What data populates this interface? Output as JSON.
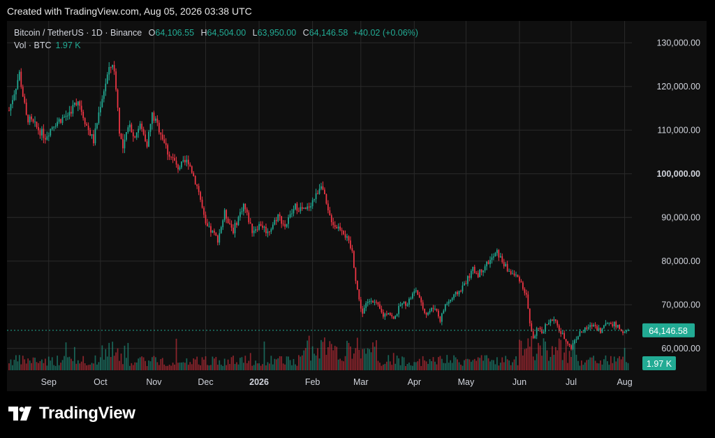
{
  "header": {
    "created_with": "Created with TradingView.com, Aug 05, 2026 03:38 UTC"
  },
  "legend": {
    "symbol": "Bitcoin / TetherUS · 1D · Binance",
    "open_label": "O",
    "open": "64,106.55",
    "high_label": "H",
    "high": "64,504.00",
    "low_label": "L",
    "low": "63,950.00",
    "close_label": "C",
    "close": "64,146.58",
    "change": "+40.02 (+0.06%)",
    "vol_label": "Vol · BTC",
    "vol": "1.97 K"
  },
  "brand": {
    "name": "TradingView"
  },
  "colors": {
    "up": "#22ab94",
    "down": "#f23645",
    "background": "#0f0f0f",
    "grid": "#2a2a2a",
    "text": "#d1d4dc"
  },
  "chart_data": {
    "type": "candlestick",
    "y_axis": {
      "ticks": [
        "130,000.00",
        "120,000.00",
        "110,000.00",
        "100,000.00",
        "90,000.00",
        "80,000.00",
        "70,000.00",
        "60,000.00"
      ],
      "tick_values": [
        130000,
        120000,
        110000,
        100000,
        90000,
        80000,
        70000,
        60000
      ],
      "bold_tick": "100,000.00",
      "range": [
        55000,
        135000
      ]
    },
    "x_axis": {
      "labels": [
        "Sep",
        "Oct",
        "Nov",
        "Dec",
        "2026",
        "Feb",
        "Mar",
        "Apr",
        "May",
        "Jun",
        "Jul",
        "Aug"
      ],
      "label_days": [
        23,
        53,
        84,
        114,
        145,
        176,
        204,
        235,
        265,
        296,
        326,
        357
      ],
      "bold_label": "2026",
      "start_date": "2025-08-09",
      "end_date": "2026-08-05"
    },
    "price_keypoints": [
      [
        0,
        114500
      ],
      [
        6,
        123000
      ],
      [
        10,
        113000
      ],
      [
        15,
        111000
      ],
      [
        21,
        108500
      ],
      [
        26,
        111500
      ],
      [
        34,
        113500
      ],
      [
        40,
        117000
      ],
      [
        45,
        111000
      ],
      [
        49,
        107500
      ],
      [
        53,
        116000
      ],
      [
        57,
        122500
      ],
      [
        60,
        125500
      ],
      [
        62,
        120000
      ],
      [
        64,
        110000
      ],
      [
        66,
        105500
      ],
      [
        70,
        112000
      ],
      [
        72,
        108500
      ],
      [
        76,
        111000
      ],
      [
        80,
        107000
      ],
      [
        83,
        113500
      ],
      [
        88,
        109500
      ],
      [
        92,
        105000
      ],
      [
        98,
        101500
      ],
      [
        104,
        103000
      ],
      [
        110,
        96000
      ],
      [
        114,
        88000
      ],
      [
        118,
        86500
      ],
      [
        121,
        85000
      ],
      [
        125,
        91000
      ],
      [
        130,
        87000
      ],
      [
        136,
        93000
      ],
      [
        141,
        87000
      ],
      [
        146,
        88500
      ],
      [
        150,
        86500
      ],
      [
        156,
        90500
      ],
      [
        160,
        88000
      ],
      [
        166,
        92500
      ],
      [
        172,
        91500
      ],
      [
        178,
        95000
      ],
      [
        181,
        98000
      ],
      [
        185,
        91000
      ],
      [
        189,
        88000
      ],
      [
        193,
        87500
      ],
      [
        196,
        85000
      ],
      [
        199,
        82000
      ],
      [
        201,
        76000
      ],
      [
        203,
        71000
      ],
      [
        205,
        68000
      ],
      [
        207,
        70000
      ],
      [
        210,
        71500
      ],
      [
        214,
        69500
      ],
      [
        217,
        67500
      ],
      [
        220,
        68500
      ],
      [
        223,
        66500
      ],
      [
        227,
        70000
      ],
      [
        231,
        70500
      ],
      [
        236,
        73500
      ],
      [
        239,
        70000
      ],
      [
        242,
        68000
      ],
      [
        247,
        69500
      ],
      [
        250,
        66500
      ],
      [
        253,
        70000
      ],
      [
        257,
        71500
      ],
      [
        262,
        73500
      ],
      [
        266,
        76000
      ],
      [
        269,
        78000
      ],
      [
        272,
        77000
      ],
      [
        276,
        79000
      ],
      [
        280,
        80500
      ],
      [
        283,
        82000
      ],
      [
        286,
        80000
      ],
      [
        289,
        78000
      ],
      [
        292,
        77000
      ],
      [
        296,
        76000
      ],
      [
        300,
        72000
      ],
      [
        302,
        66000
      ],
      [
        304,
        62000
      ],
      [
        306,
        64500
      ],
      [
        309,
        63500
      ],
      [
        312,
        66000
      ],
      [
        316,
        66500
      ],
      [
        320,
        63500
      ],
      [
        323,
        62000
      ],
      [
        326,
        60000
      ],
      [
        328,
        62000
      ],
      [
        331,
        63500
      ],
      [
        335,
        64500
      ],
      [
        339,
        65500
      ],
      [
        343,
        64000
      ],
      [
        347,
        66000
      ],
      [
        351,
        65500
      ],
      [
        354,
        64500
      ],
      [
        357,
        63500
      ],
      [
        359,
        64146.58
      ]
    ],
    "ohlc_last": {
      "open": 64106.55,
      "high": 64504.0,
      "low": 63950.0,
      "close": 64146.58
    },
    "last_price_label": "64,146.58",
    "volume_label": "1.97 K"
  }
}
